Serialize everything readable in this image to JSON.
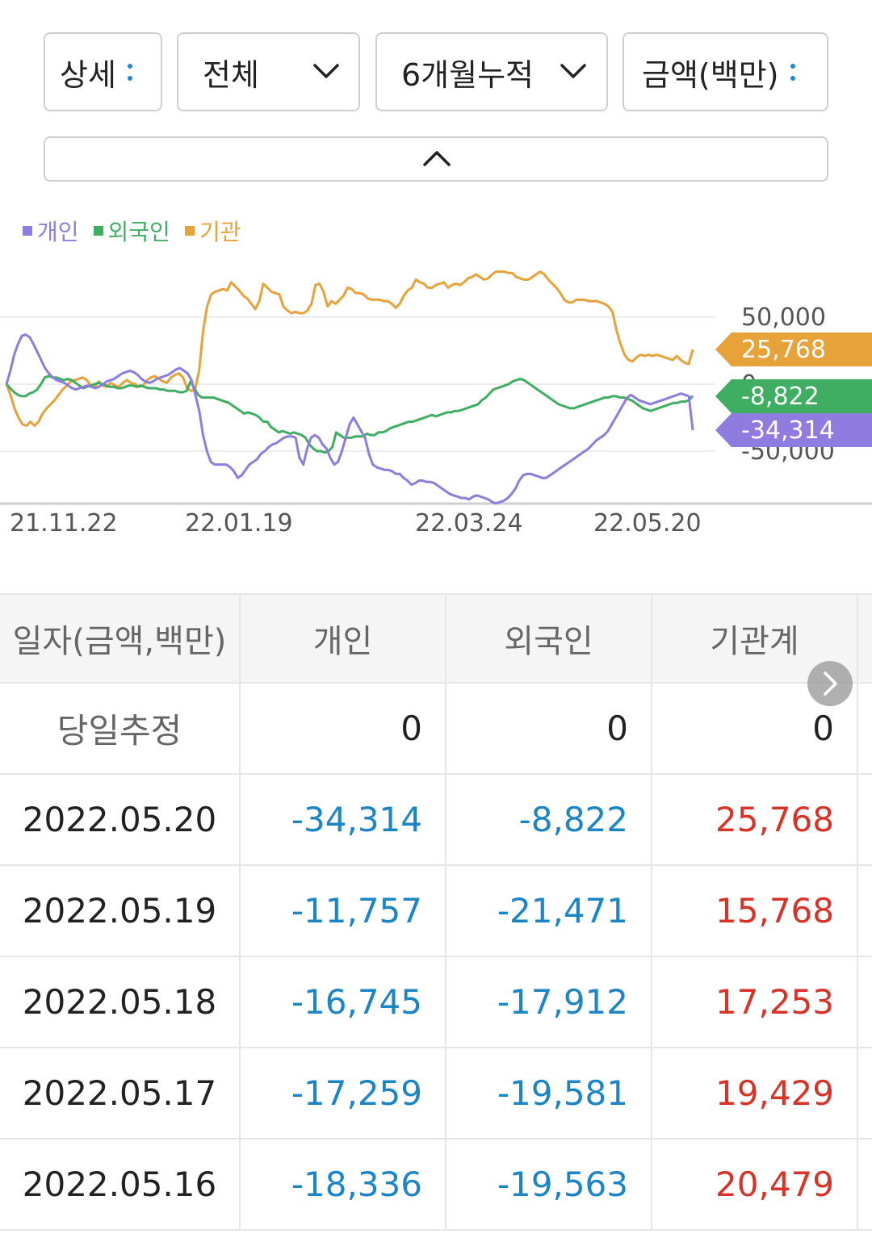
{
  "filters": {
    "view": "상세",
    "scope": "전체",
    "period": "6개월누적",
    "unit": "금액(백만)"
  },
  "legend": [
    {
      "label": "개인",
      "color": "#8e7ce0"
    },
    {
      "label": "외국인",
      "color": "#3fae62"
    },
    {
      "label": "기관",
      "color": "#e8a23a"
    }
  ],
  "chart_data": {
    "type": "line",
    "x_ticks": [
      "21.11.22",
      "22.01.19",
      "22.03.24",
      "22.05.20"
    ],
    "y_ticks": [
      50000,
      0,
      -50000
    ],
    "y_tick_labels": [
      "50,000",
      "0",
      "-50,000"
    ],
    "ylim": [
      -100000,
      100000
    ],
    "grid": true,
    "series": [
      {
        "name": "기관",
        "color": "#e8a23a",
        "last_label": "25,768",
        "values": [
          0,
          -8000,
          -18000,
          -25000,
          -30000,
          -31000,
          -28000,
          -31000,
          -28000,
          -22000,
          -18000,
          -15000,
          -12000,
          -8000,
          -4000,
          -1000,
          2000,
          3000,
          4000,
          5000,
          3000,
          -1000,
          -2000,
          2000,
          -1000,
          -2000,
          1000,
          -1000,
          -2000,
          1000,
          3000,
          1000,
          0,
          -2000,
          -1000,
          3000,
          5000,
          6000,
          4000,
          2000,
          1000,
          5000,
          7000,
          8000,
          5000,
          -3000,
          -5000,
          -4000,
          10000,
          40000,
          58000,
          67000,
          69000,
          70000,
          71000,
          70000,
          76000,
          73000,
          70000,
          66000,
          64000,
          60000,
          56000,
          62000,
          75000,
          72000,
          69000,
          68000,
          67000,
          58000,
          55000,
          53000,
          54000,
          53000,
          53000,
          55000,
          60000,
          74000,
          75000,
          69000,
          58000,
          62000,
          60000,
          63000,
          66000,
          72000,
          71000,
          68000,
          68000,
          67000,
          64000,
          63000,
          63000,
          63000,
          62000,
          62000,
          60000,
          57000,
          60000,
          66000,
          70000,
          72000,
          78000,
          76000,
          75000,
          72000,
          72000,
          74000,
          75000,
          76000,
          72000,
          74000,
          75000,
          74000,
          76000,
          79000,
          80000,
          82000,
          80000,
          78000,
          79000,
          82000,
          84000,
          84000,
          84000,
          83000,
          83000,
          80000,
          79000,
          78000,
          78000,
          80000,
          82000,
          84000,
          82000,
          78000,
          75000,
          72000,
          68000,
          63000,
          61000,
          61000,
          63000,
          63000,
          63000,
          62000,
          62000,
          62000,
          61000,
          60000,
          58000,
          54000,
          40000,
          30000,
          22000,
          18000,
          17000,
          20000,
          22000,
          21000,
          22000,
          21000,
          22000,
          21000,
          20000,
          19000,
          18000,
          21000,
          18000,
          16000,
          15000,
          25768
        ]
      },
      {
        "name": "외국인",
        "color": "#3fae62",
        "last_label": "-8,822",
        "values": [
          0,
          -3000,
          -6000,
          -8000,
          -9000,
          -9000,
          -7000,
          -6000,
          -4000,
          0,
          5000,
          6000,
          5000,
          5000,
          4000,
          3000,
          4000,
          3000,
          1000,
          -1000,
          -3000,
          -2000,
          -1000,
          0,
          1000,
          0,
          -1000,
          -2000,
          -2000,
          -3000,
          -3000,
          -2000,
          -1000,
          -1000,
          -2000,
          -1000,
          -2000,
          -3000,
          -3000,
          -3000,
          -4000,
          -4000,
          -5000,
          -5000,
          -5000,
          -6000,
          -6000,
          -5000,
          2000,
          -3000,
          -8000,
          -10000,
          -10000,
          -10000,
          -10000,
          -11000,
          -12000,
          -13000,
          -14000,
          -16000,
          -18000,
          -20000,
          -22000,
          -21000,
          -22000,
          -23000,
          -25000,
          -28000,
          -28000,
          -32000,
          -34000,
          -36000,
          -35000,
          -36000,
          -37000,
          -36000,
          -37000,
          -38000,
          -40000,
          -45000,
          -48000,
          -50000,
          -50000,
          -51000,
          -50000,
          -47000,
          -36000,
          -38000,
          -40000,
          -40000,
          -40000,
          -39000,
          -39000,
          -39000,
          -37000,
          -38000,
          -38000,
          -36000,
          -36000,
          -35000,
          -33000,
          -32000,
          -31000,
          -30000,
          -29000,
          -28000,
          -28000,
          -27000,
          -26000,
          -25000,
          -24000,
          -23000,
          -24000,
          -23000,
          -22000,
          -21000,
          -21000,
          -20000,
          -20000,
          -19000,
          -18000,
          -17000,
          -16000,
          -15000,
          -12000,
          -10000,
          -7000,
          -4000,
          -3000,
          -2000,
          -1000,
          0,
          2000,
          3000,
          4000,
          3000,
          1000,
          -1000,
          -3000,
          -5000,
          -7000,
          -9000,
          -11000,
          -13000,
          -15000,
          -16000,
          -17000,
          -18000,
          -18000,
          -17000,
          -16000,
          -15000,
          -14000,
          -13000,
          -12000,
          -11000,
          -10000,
          -10000,
          -9000,
          -9000,
          -10000,
          -10000,
          -11000,
          -12000,
          -14000,
          -16000,
          -18000,
          -19000,
          -20000,
          -19000,
          -18000,
          -17000,
          -16000,
          -15000,
          -14000,
          -14000,
          -13000,
          -13000,
          -12000,
          -8822
        ]
      },
      {
        "name": "개인",
        "color": "#8e7ce0",
        "last_label": "-34,314",
        "values": [
          0,
          10000,
          22000,
          30000,
          36000,
          37000,
          35000,
          30000,
          24000,
          18000,
          12000,
          8000,
          5000,
          3000,
          2000,
          1000,
          -1000,
          -3000,
          -4000,
          -3000,
          -2000,
          -1000,
          -2000,
          -3000,
          -2000,
          0,
          2000,
          3000,
          4000,
          6000,
          8000,
          9000,
          10000,
          9000,
          7000,
          4000,
          2000,
          1000,
          2000,
          4000,
          5000,
          6000,
          7000,
          9000,
          11000,
          12000,
          10000,
          8000,
          3000,
          -8000,
          -20000,
          -38000,
          -50000,
          -58000,
          -60000,
          -60000,
          -60000,
          -60000,
          -62000,
          -65000,
          -70000,
          -68000,
          -64000,
          -60000,
          -58000,
          -56000,
          -52000,
          -50000,
          -47000,
          -45000,
          -44000,
          -42000,
          -40000,
          -39000,
          -39000,
          -40000,
          -55000,
          -60000,
          -48000,
          -40000,
          -38000,
          -40000,
          -45000,
          -48000,
          -55000,
          -60000,
          -58000,
          -50000,
          -40000,
          -30000,
          -25000,
          -30000,
          -35000,
          -40000,
          -52000,
          -60000,
          -62000,
          -63000,
          -64000,
          -64000,
          -65000,
          -67000,
          -67000,
          -70000,
          -72000,
          -75000,
          -74000,
          -72000,
          -72000,
          -73000,
          -73000,
          -74000,
          -76000,
          -78000,
          -80000,
          -82000,
          -83000,
          -84000,
          -85000,
          -85000,
          -86000,
          -84000,
          -83000,
          -84000,
          -85000,
          -86000,
          -88000,
          -89000,
          -88000,
          -87000,
          -85000,
          -82000,
          -78000,
          -72000,
          -68000,
          -67000,
          -67000,
          -68000,
          -69000,
          -70000,
          -70000,
          -68000,
          -66000,
          -64000,
          -62000,
          -60000,
          -58000,
          -56000,
          -54000,
          -52000,
          -50000,
          -48000,
          -45000,
          -42000,
          -40000,
          -38000,
          -35000,
          -30000,
          -25000,
          -20000,
          -15000,
          -10000,
          -8000,
          -10000,
          -12000,
          -13000,
          -14000,
          -15000,
          -14000,
          -13000,
          -12000,
          -11000,
          -10000,
          -9000,
          -8000,
          -7000,
          -8000,
          -9000,
          -34314
        ]
      }
    ]
  },
  "table": {
    "headers": [
      "일자(금액,백만)",
      "개인",
      "외국인",
      "기관계"
    ],
    "rows": [
      {
        "date": "당일추정",
        "individual": "0",
        "foreign": "0",
        "institution": "0"
      },
      {
        "date": "2022.05.20",
        "individual": "-34,314",
        "foreign": "-8,822",
        "institution": "25,768"
      },
      {
        "date": "2022.05.19",
        "individual": "-11,757",
        "foreign": "-21,471",
        "institution": "15,768"
      },
      {
        "date": "2022.05.18",
        "individual": "-16,745",
        "foreign": "-17,912",
        "institution": "17,253"
      },
      {
        "date": "2022.05.17",
        "individual": "-17,259",
        "foreign": "-19,581",
        "institution": "19,429"
      },
      {
        "date": "2022.05.16",
        "individual": "-18,336",
        "foreign": "-19,563",
        "institution": "20,479"
      }
    ]
  }
}
